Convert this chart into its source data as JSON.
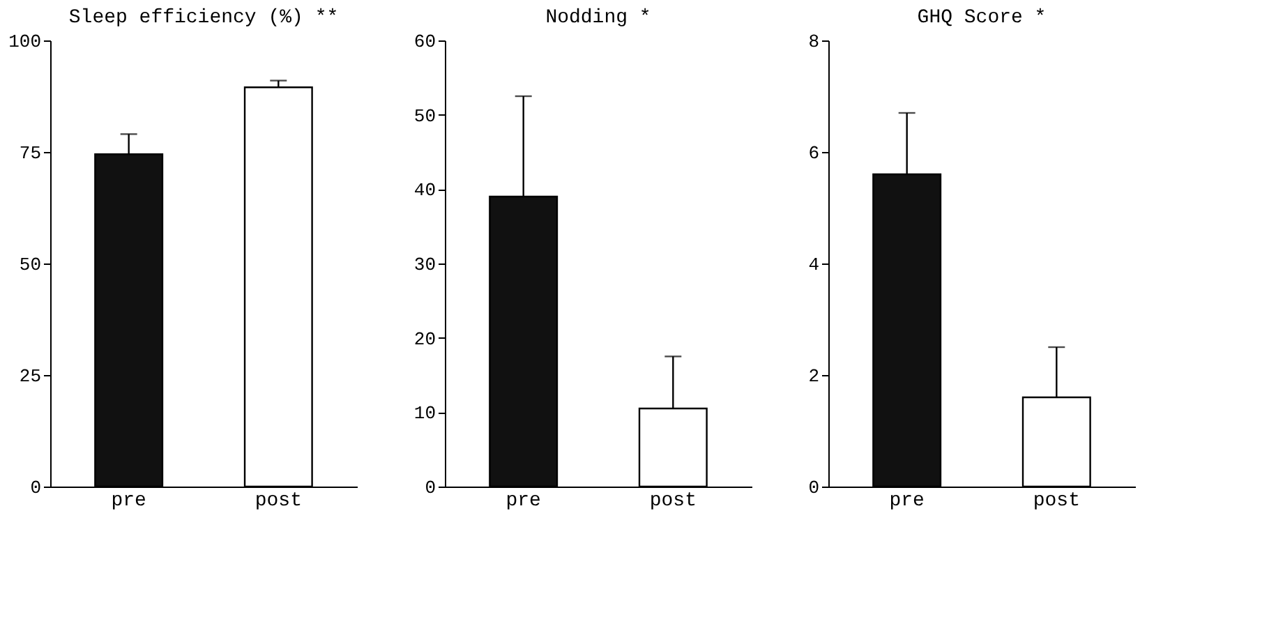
{
  "chart_data": [
    {
      "type": "bar",
      "title": "Sleep efficiency (%) **",
      "categories": [
        "pre",
        "post"
      ],
      "values": [
        74.5,
        89.5
      ],
      "colors": [
        "#111111",
        "#ffffff"
      ],
      "errors": [
        [
          74.5,
          79
        ],
        [
          89.5,
          91
        ]
      ],
      "ylim": [
        0,
        100
      ],
      "yticks": [
        0,
        25,
        50,
        75,
        100
      ],
      "grid": false
    },
    {
      "type": "bar",
      "title": "Nodding *",
      "categories": [
        "pre",
        "post"
      ],
      "values": [
        39,
        10.5
      ],
      "colors": [
        "#111111",
        "#ffffff"
      ],
      "errors": [
        [
          39,
          52.5
        ],
        [
          10.5,
          17.5
        ]
      ],
      "ylim": [
        0,
        60
      ],
      "yticks": [
        0,
        10,
        20,
        30,
        40,
        50,
        60
      ],
      "grid": false
    },
    {
      "type": "bar",
      "title": "GHQ Score *",
      "categories": [
        "pre",
        "post"
      ],
      "values": [
        5.6,
        1.6
      ],
      "colors": [
        "#111111",
        "#ffffff"
      ],
      "errors": [
        [
          5.6,
          6.7
        ],
        [
          1.6,
          2.5
        ]
      ],
      "ylim": [
        0,
        8
      ],
      "yticks": [
        0,
        2,
        4,
        6,
        8
      ],
      "grid": false
    }
  ]
}
